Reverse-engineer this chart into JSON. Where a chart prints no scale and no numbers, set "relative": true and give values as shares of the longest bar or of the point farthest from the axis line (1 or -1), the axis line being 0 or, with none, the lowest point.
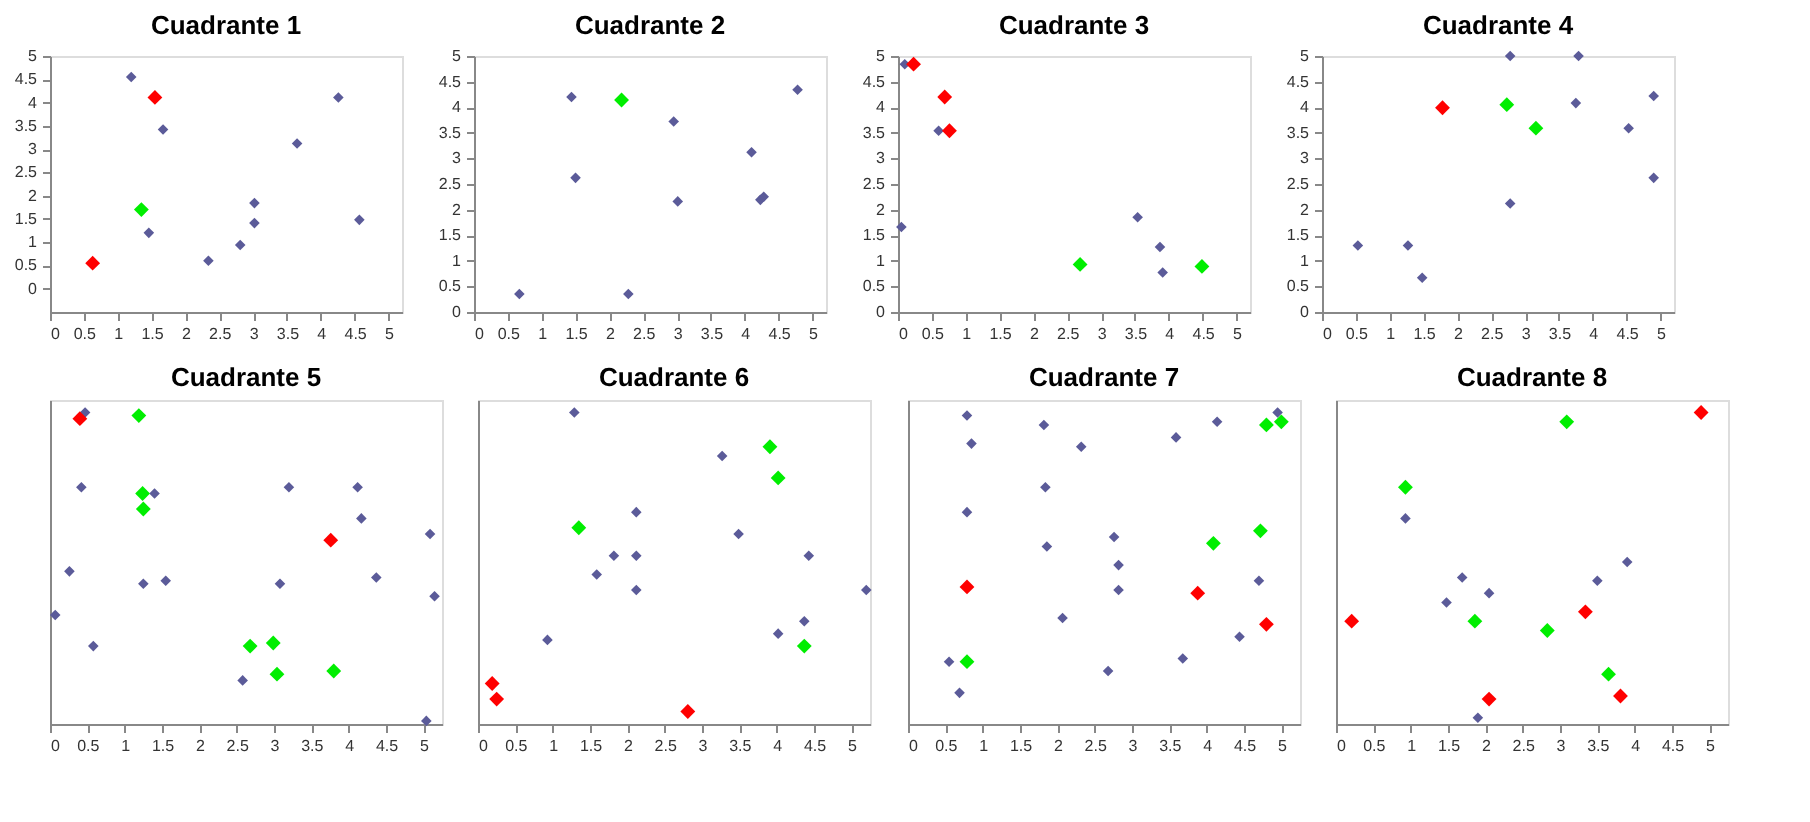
{
  "chart_data": [
    {
      "type": "scatter",
      "title": "Cuadrante 1",
      "xlim": [
        0,
        5.2
      ],
      "xticks": [
        0,
        0.5,
        1,
        1.5,
        2,
        2.5,
        3,
        3.5,
        4,
        4.5,
        5
      ],
      "ylim": [
        -0.5,
        5
      ],
      "yticks": [
        0,
        0.5,
        1,
        1.5,
        2,
        2.5,
        3,
        3.5,
        4,
        4.5,
        5
      ],
      "marker": "diamond",
      "grid": false,
      "series": [
        {
          "color": "#5b5b99",
          "x": [
            1.2,
            1.67,
            1.46,
            2.34,
            2.81,
            3.02,
            3.02,
            3.65,
            4.26,
            4.57
          ],
          "values": [
            4.55,
            3.42,
            1.2,
            0.6,
            0.94,
            1.84,
            1.41,
            3.12,
            4.11,
            1.48
          ]
        },
        {
          "color": "#ff0000",
          "x": [
            1.55,
            0.63
          ],
          "values": [
            4.11,
            0.55
          ]
        },
        {
          "color": "#00ee00",
          "x": [
            1.35
          ],
          "values": [
            1.7
          ]
        }
      ]
    },
    {
      "type": "scatter",
      "title": "Cuadrante 2",
      "xlim": [
        0,
        5.2
      ],
      "xticks": [
        0,
        0.5,
        1,
        1.5,
        2,
        2.5,
        3,
        3.5,
        4,
        4.5,
        5
      ],
      "ylim": [
        0,
        5
      ],
      "yticks": [
        0,
        0.5,
        1,
        1.5,
        2,
        2.5,
        3,
        3.5,
        4,
        4.5,
        5
      ],
      "marker": "diamond",
      "grid": false,
      "series": [
        {
          "color": "#5b5b99",
          "x": [
            0.67,
            1.44,
            1.5,
            2.28,
            2.95,
            3.01,
            4.1,
            4.23,
            4.28,
            4.78
          ],
          "values": [
            0.35,
            4.2,
            2.62,
            0.35,
            3.72,
            2.16,
            3.12,
            2.19,
            2.25,
            4.34
          ]
        },
        {
          "color": "#00ee00",
          "x": [
            2.18
          ],
          "values": [
            4.14
          ]
        }
      ]
    },
    {
      "type": "scatter",
      "title": "Cuadrante 3",
      "xlim": [
        0,
        5.2
      ],
      "xticks": [
        0,
        0.5,
        1,
        1.5,
        2,
        2.5,
        3,
        3.5,
        4,
        4.5,
        5
      ],
      "ylim": [
        0,
        5
      ],
      "yticks": [
        0,
        0.5,
        1,
        1.5,
        2,
        2.5,
        3,
        3.5,
        4,
        4.5,
        5
      ],
      "marker": "diamond",
      "grid": false,
      "series": [
        {
          "color": "#5b5b99",
          "x": [
            0.1,
            0.6,
            0.05,
            3.54,
            3.87,
            3.91
          ],
          "values": [
            4.84,
            3.54,
            1.66,
            1.85,
            1.27,
            0.77
          ]
        },
        {
          "color": "#ff0000",
          "x": [
            0.23,
            0.69,
            0.76
          ],
          "values": [
            4.84,
            4.2,
            3.54
          ]
        },
        {
          "color": "#00ee00",
          "x": [
            2.69,
            4.49
          ],
          "values": [
            0.93,
            0.89
          ]
        }
      ]
    },
    {
      "type": "scatter",
      "title": "Cuadrante  4",
      "xlim": [
        0,
        5.2
      ],
      "xticks": [
        0,
        0.5,
        1,
        1.5,
        2,
        2.5,
        3,
        3.5,
        4,
        4.5,
        5
      ],
      "ylim": [
        0,
        5
      ],
      "yticks": [
        0,
        0.5,
        1,
        1.5,
        2,
        2.5,
        3,
        3.5,
        4,
        4.5,
        5
      ],
      "marker": "diamond",
      "grid": false,
      "series": [
        {
          "color": "#5b5b99",
          "x": [
            0.53,
            1.27,
            1.48,
            2.78,
            2.78,
            3.75,
            3.79,
            4.53,
            4.9,
            4.9
          ],
          "values": [
            1.3,
            1.3,
            0.67,
            5,
            2.12,
            4.08,
            5,
            3.59,
            4.22,
            2.62
          ]
        },
        {
          "color": "#ff0000",
          "x": [
            1.78
          ],
          "values": [
            3.99
          ]
        },
        {
          "color": "#00ee00",
          "x": [
            2.73,
            3.16
          ],
          "values": [
            4.05,
            3.59
          ]
        }
      ]
    },
    {
      "type": "scatter",
      "title": "Cuadrante 5",
      "xlim": [
        0,
        5.25
      ],
      "xticks": [
        0,
        0.5,
        1,
        1.5,
        2,
        2.5,
        3,
        3.5,
        4,
        4.5,
        5
      ],
      "relative": true,
      "marker": "diamond",
      "grid": false,
      "series": [
        {
          "color": "#5b5b99",
          "x": [
            0.47,
            0.42,
            0.26,
            0.07,
            0.58,
            1.25,
            1.4,
            1.55,
            2.58,
            3.08,
            3.2,
            4.12,
            4.17,
            4.37,
            5.09,
            5.15,
            5.04
          ],
          "values": [
            1.0,
            0.76,
            0.49,
            0.35,
            0.25,
            0.45,
            0.74,
            0.46,
            0.14,
            0.45,
            0.76,
            0.76,
            0.66,
            0.47,
            0.61,
            0.41,
            0.01
          ]
        },
        {
          "color": "#ff0000",
          "x": [
            0.4,
            3.76
          ],
          "values": [
            0.98,
            0.59
          ]
        },
        {
          "color": "#00ee00",
          "x": [
            1.19,
            1.24,
            1.25,
            2.68,
            2.99,
            3.04,
            3.8
          ],
          "values": [
            0.99,
            0.74,
            0.69,
            0.25,
            0.26,
            0.16,
            0.17
          ]
        }
      ]
    },
    {
      "type": "scatter",
      "title": "Cuadrante  6",
      "xlim": [
        0,
        5.25
      ],
      "xticks": [
        0,
        0.5,
        1,
        1.5,
        2,
        2.5,
        3,
        3.5,
        4,
        4.5,
        5
      ],
      "relative": true,
      "marker": "diamond",
      "grid": false,
      "series": [
        {
          "color": "#5b5b99",
          "x": [
            0.93,
            1.29,
            1.59,
            1.82,
            2.12,
            2.12,
            2.12,
            3.27,
            3.49,
            4.02,
            4.37,
            4.43,
            5.2
          ],
          "values": [
            0.27,
            1.0,
            0.48,
            0.54,
            0.68,
            0.54,
            0.43,
            0.86,
            0.61,
            0.29,
            0.33,
            0.54,
            0.43
          ]
        },
        {
          "color": "#ff0000",
          "x": [
            0.19,
            0.25,
            2.81
          ],
          "values": [
            0.13,
            0.08,
            0.04
          ]
        },
        {
          "color": "#00ee00",
          "x": [
            1.35,
            3.91,
            4.02,
            4.37
          ],
          "values": [
            0.63,
            0.89,
            0.79,
            0.25
          ]
        }
      ]
    },
    {
      "type": "scatter",
      "title": "Cuadrante 7",
      "xlim": [
        0,
        5.25
      ],
      "xticks": [
        0,
        0.5,
        1,
        1.5,
        2,
        2.5,
        3,
        3.5,
        4,
        4.5,
        5
      ],
      "relative": true,
      "marker": "diamond",
      "grid": false,
      "series": [
        {
          "color": "#5b5b99",
          "x": [
            0.79,
            0.85,
            0.79,
            0.55,
            0.69,
            1.82,
            1.84,
            1.86,
            2.07,
            2.32,
            2.76,
            2.82,
            2.82,
            2.68,
            3.59,
            3.68,
            4.14,
            4.44,
            4.7,
            4.95
          ],
          "values": [
            0.99,
            0.9,
            0.68,
            0.2,
            0.1,
            0.96,
            0.76,
            0.57,
            0.34,
            0.89,
            0.6,
            0.51,
            0.43,
            0.17,
            0.92,
            0.21,
            0.97,
            0.28,
            0.46,
            1.0
          ]
        },
        {
          "color": "#ff0000",
          "x": [
            0.79,
            3.88,
            4.8
          ],
          "values": [
            0.44,
            0.42,
            0.32
          ]
        },
        {
          "color": "#00ee00",
          "x": [
            0.79,
            4.09,
            4.72,
            4.8,
            5.0
          ],
          "values": [
            0.2,
            0.58,
            0.62,
            0.96,
            0.97
          ]
        }
      ]
    },
    {
      "type": "scatter",
      "title": "Cuadrante 8",
      "xlim": [
        0,
        5.25
      ],
      "xticks": [
        0,
        0.5,
        1,
        1.5,
        2,
        2.5,
        3,
        3.5,
        4,
        4.5,
        5
      ],
      "relative": true,
      "marker": "diamond",
      "grid": false,
      "series": [
        {
          "color": "#5b5b99",
          "x": [
            0.93,
            1.69,
            1.48,
            2.05,
            1.9,
            3.5,
            3.9
          ],
          "values": [
            0.66,
            0.47,
            0.39,
            0.42,
            0.02,
            0.46,
            0.52
          ]
        },
        {
          "color": "#ff0000",
          "x": [
            0.21,
            2.05,
            3.34,
            3.81,
            4.89
          ],
          "values": [
            0.33,
            0.08,
            0.36,
            0.09,
            1.0
          ]
        },
        {
          "color": "#00ee00",
          "x": [
            0.93,
            1.86,
            2.83,
            3.09,
            3.65
          ],
          "values": [
            0.76,
            0.33,
            0.3,
            0.97,
            0.16
          ]
        }
      ]
    }
  ]
}
